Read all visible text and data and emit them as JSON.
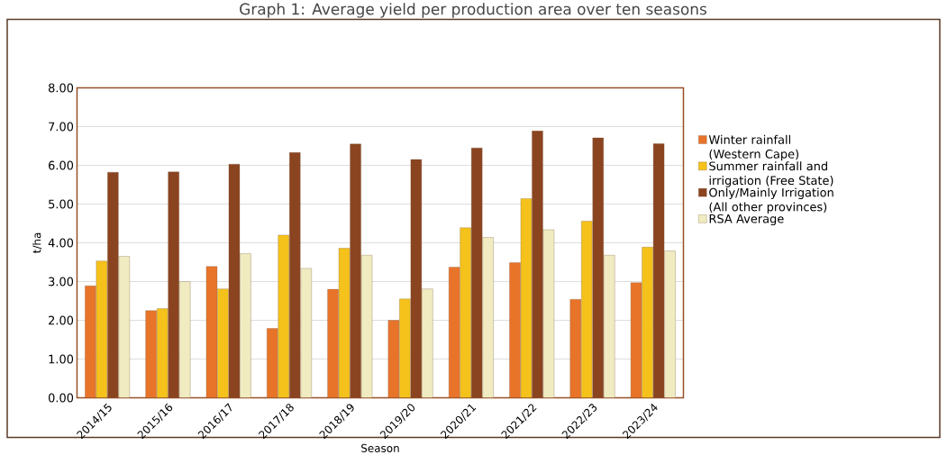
{
  "chart_data": {
    "type": "bar",
    "title": "Graph 1: Average yield per production area over ten seasons",
    "xlabel": "Season",
    "ylabel": "t/ha",
    "categories": [
      "2014/15",
      "2015/16",
      "2016/17",
      "2017/18",
      "2018/19",
      "2019/20",
      "2020/21",
      "2021/22",
      "2022/23",
      "2023/24"
    ],
    "series": [
      {
        "name": "Winter rainfall (Western Cape)",
        "color": "#e8742a",
        "values": [
          2.89,
          2.25,
          3.39,
          1.79,
          2.8,
          2.0,
          3.37,
          3.49,
          2.54,
          2.97
        ]
      },
      {
        "name": "Summer rainfall and irrigation (Free State)",
        "color": "#f5c21b",
        "values": [
          3.53,
          2.3,
          2.81,
          4.2,
          3.86,
          2.55,
          4.39,
          5.14,
          4.56,
          3.89
        ]
      },
      {
        "name": "Only/Mainly Irrigation (All other provinces)",
        "color": "#8b4420",
        "values": [
          5.82,
          5.83,
          6.03,
          6.33,
          6.55,
          6.15,
          6.45,
          6.89,
          6.71,
          6.56
        ]
      },
      {
        "name": "RSA Average",
        "color": "#f0ebc0",
        "values": [
          3.65,
          3.0,
          3.72,
          3.34,
          3.68,
          2.81,
          4.14,
          4.34,
          3.68,
          3.79
        ]
      }
    ],
    "ylim": [
      0,
      8
    ],
    "yticks": [
      {
        "value": 0,
        "label": "0.00"
      },
      {
        "value": 1,
        "label": "1.00"
      },
      {
        "value": 2,
        "label": "2.00"
      },
      {
        "value": 3,
        "label": "3.00"
      },
      {
        "value": 4,
        "label": "4.00"
      },
      {
        "value": 5,
        "label": "5.00"
      },
      {
        "value": 6,
        "label": "6.00"
      },
      {
        "value": 7,
        "label": "7.00"
      },
      {
        "value": 8,
        "label": "8.00"
      }
    ],
    "grid": "y",
    "legend": "right"
  }
}
